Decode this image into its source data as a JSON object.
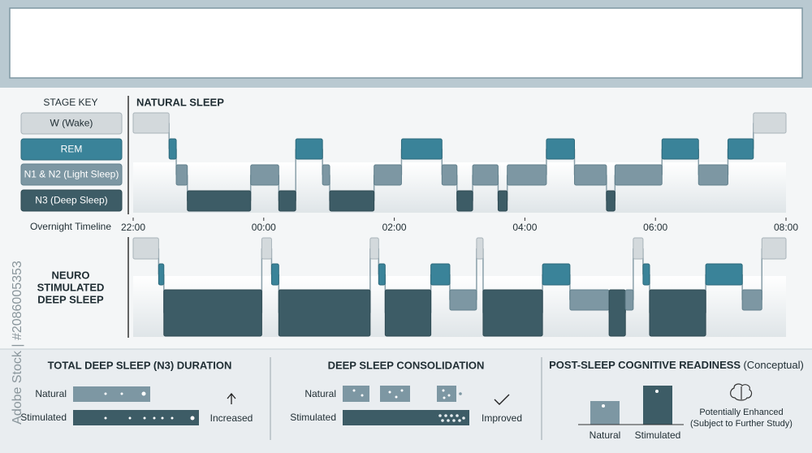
{
  "watermark": "Adobe Stock | #2086005353",
  "stage_key": {
    "title": "STAGE KEY",
    "stages": [
      "W (Wake)",
      "REM",
      "N1 & N2 (Light Sleep)",
      "N3 (Deep Sleep)"
    ],
    "colors": [
      "#d3d9dc",
      "#3a8399",
      "#7d97a3",
      "#3d5c66"
    ]
  },
  "timeline": {
    "label": "Overnight Timeline",
    "xlim": [
      0,
      10
    ],
    "ticks": [
      {
        "value": 0,
        "label": "22:00"
      },
      {
        "value": 2,
        "label": "00:00"
      },
      {
        "value": 4,
        "label": "02:00"
      },
      {
        "value": 6,
        "label": "04:00"
      },
      {
        "value": 8,
        "label": "06:00"
      },
      {
        "value": 10,
        "label": "08:00"
      }
    ]
  },
  "natural": {
    "title": "NATURAL SLEEP",
    "segments": [
      {
        "stage": 0,
        "start": 0,
        "end": 0.55
      },
      {
        "stage": 1,
        "start": 0.55,
        "end": 0.66
      },
      {
        "stage": 2,
        "start": 0.66,
        "end": 0.83
      },
      {
        "stage": 3,
        "start": 0.83,
        "end": 1.8
      },
      {
        "stage": 2,
        "start": 1.8,
        "end": 2.23
      },
      {
        "stage": 3,
        "start": 2.23,
        "end": 2.49
      },
      {
        "stage": 1,
        "start": 2.49,
        "end": 2.9
      },
      {
        "stage": 2,
        "start": 2.9,
        "end": 3.01
      },
      {
        "stage": 3,
        "start": 3.01,
        "end": 3.69
      },
      {
        "stage": 2,
        "start": 3.69,
        "end": 4.11
      },
      {
        "stage": 1,
        "start": 4.11,
        "end": 4.73
      },
      {
        "stage": 2,
        "start": 4.73,
        "end": 4.96
      },
      {
        "stage": 3,
        "start": 4.96,
        "end": 5.2
      },
      {
        "stage": 2,
        "start": 5.2,
        "end": 5.59
      },
      {
        "stage": 3,
        "start": 5.59,
        "end": 5.73
      },
      {
        "stage": 2,
        "start": 5.73,
        "end": 6.33
      },
      {
        "stage": 1,
        "start": 6.33,
        "end": 6.76
      },
      {
        "stage": 2,
        "start": 6.76,
        "end": 7.25
      },
      {
        "stage": 3,
        "start": 7.25,
        "end": 7.38
      },
      {
        "stage": 2,
        "start": 7.38,
        "end": 8.1
      },
      {
        "stage": 1,
        "start": 8.1,
        "end": 8.66
      },
      {
        "stage": 2,
        "start": 8.66,
        "end": 9.11
      },
      {
        "stage": 1,
        "start": 9.11,
        "end": 9.5
      },
      {
        "stage": 0,
        "start": 9.5,
        "end": 10
      }
    ]
  },
  "stimulated": {
    "title": [
      "NEURO",
      "STIMULATED",
      "DEEP SLEEP"
    ],
    "segments": [
      {
        "stage": 0,
        "start": 0,
        "end": 0.39
      },
      {
        "stage": 1,
        "start": 0.39,
        "end": 0.47
      },
      {
        "stage": 3,
        "start": 0.47,
        "end": 1.97
      },
      {
        "stage": 0,
        "start": 1.97,
        "end": 2.12
      },
      {
        "stage": 1,
        "start": 2.12,
        "end": 2.23
      },
      {
        "stage": 3,
        "start": 2.23,
        "end": 3.63
      },
      {
        "stage": 0,
        "start": 3.63,
        "end": 3.76
      },
      {
        "stage": 1,
        "start": 3.76,
        "end": 3.86
      },
      {
        "stage": 3,
        "start": 3.86,
        "end": 4.56
      },
      {
        "stage": 1,
        "start": 4.56,
        "end": 4.85
      },
      {
        "stage": 2,
        "start": 4.85,
        "end": 5.26
      },
      {
        "stage": 0,
        "start": 5.26,
        "end": 5.36
      },
      {
        "stage": 3,
        "start": 5.36,
        "end": 6.27
      },
      {
        "stage": 1,
        "start": 6.27,
        "end": 6.69
      },
      {
        "stage": 2,
        "start": 6.69,
        "end": 7.29
      },
      {
        "stage": 3,
        "start": 7.29,
        "end": 7.54
      },
      {
        "stage": 2,
        "start": 7.54,
        "end": 7.66
      },
      {
        "stage": 0,
        "start": 7.66,
        "end": 7.81
      },
      {
        "stage": 1,
        "start": 7.81,
        "end": 7.91
      },
      {
        "stage": 3,
        "start": 7.91,
        "end": 8.77
      },
      {
        "stage": 1,
        "start": 8.77,
        "end": 9.33
      },
      {
        "stage": 2,
        "start": 9.33,
        "end": 9.63
      },
      {
        "stage": 0,
        "start": 9.63,
        "end": 10
      }
    ]
  },
  "panels": {
    "duration": {
      "title": "TOTAL DEEP SLEEP (N3) DURATION",
      "rows": [
        "Natural",
        "Stimulated"
      ],
      "result": "Increased"
    },
    "consolidation": {
      "title": "DEEP SLEEP CONSOLIDATION",
      "rows": [
        "Natural",
        "Stimulated"
      ],
      "result": "Improved"
    },
    "readiness": {
      "title": "POST-SLEEP COGNITIVE READINESS",
      "title_note": "(Conceptual)",
      "bars": [
        "Natural",
        "Stimulated"
      ],
      "note": [
        "Potentially Enhanced",
        "(Subject to Further Study)"
      ]
    }
  }
}
